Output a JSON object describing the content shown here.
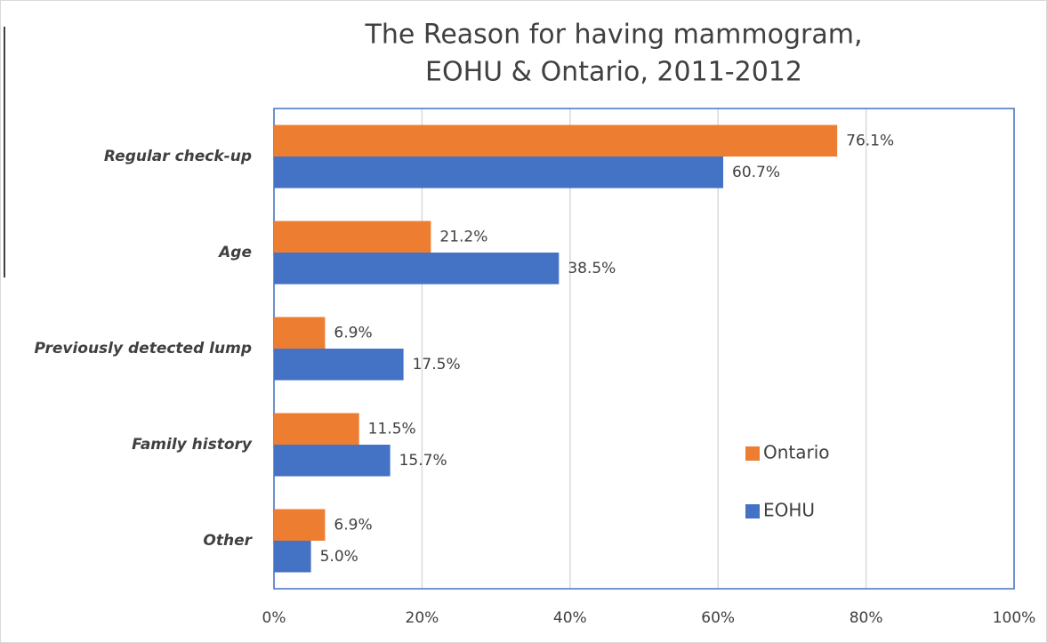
{
  "chart_data": {
    "type": "bar",
    "orientation": "horizontal",
    "title": [
      "The Reason for having mammogram,",
      "EOHU & Ontario, 2011-2012"
    ],
    "categories": [
      "Regular check-up",
      "Age",
      "Previously detected lump",
      "Family history",
      "Other"
    ],
    "series": [
      {
        "name": "Ontario",
        "color": "#ed7d31",
        "values": [
          76.1,
          21.2,
          6.9,
          11.5,
          6.9
        ],
        "value_labels": [
          "76.1%",
          "21.2%",
          "6.9%",
          "11.5%",
          "6.9%"
        ]
      },
      {
        "name": "EOHU",
        "color": "#4472c4",
        "values": [
          60.7,
          38.5,
          17.5,
          15.7,
          5.0
        ],
        "value_labels": [
          "60.7%",
          "38.5%",
          "17.5%",
          "15.7%",
          "5.0%"
        ]
      }
    ],
    "xlim": [
      0,
      100
    ],
    "xticks": [
      {
        "value": 0,
        "label": "0%"
      },
      {
        "value": 20,
        "label": "20%"
      },
      {
        "value": 40,
        "label": "40%"
      },
      {
        "value": 60,
        "label": "60%"
      },
      {
        "value": 80,
        "label": "80%"
      },
      {
        "value": 100,
        "label": "100%"
      }
    ],
    "grid": true
  }
}
